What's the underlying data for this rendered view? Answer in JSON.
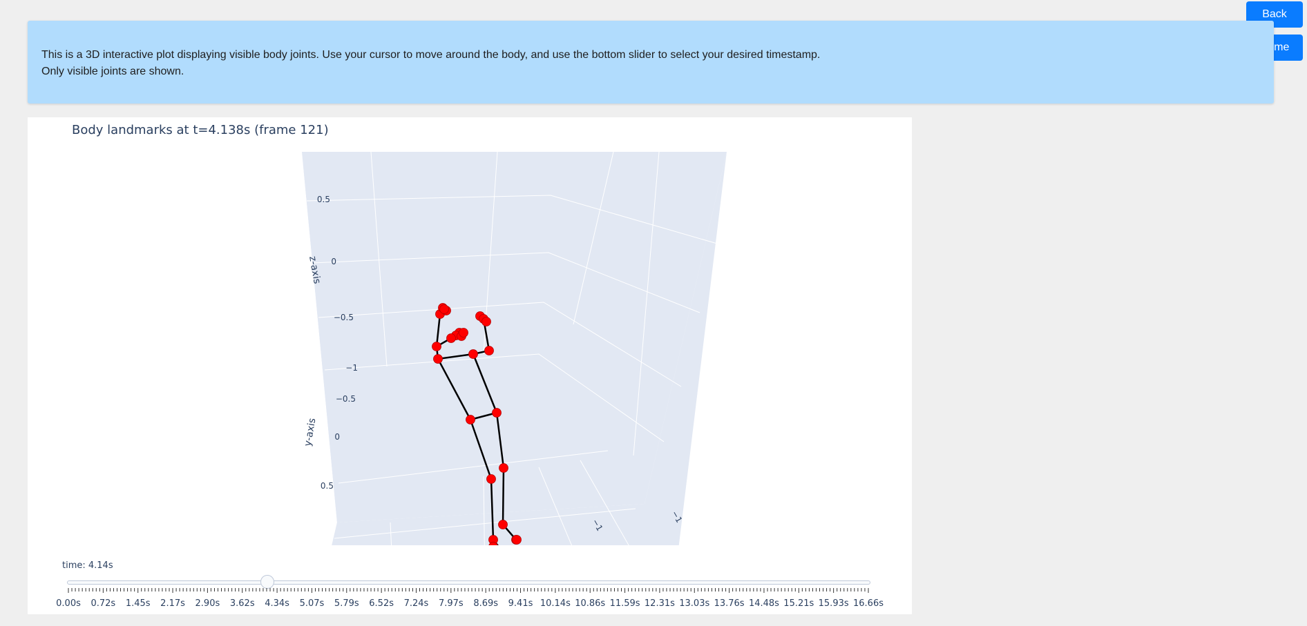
{
  "nav": {
    "back_label": "Back",
    "home_label": "Home"
  },
  "info": {
    "line1": "This is a 3D interactive plot displaying visible body joints. Use your cursor to move around the body, and use the bottom slider to select your desired timestamp.",
    "line2": "Only visible joints are shown."
  },
  "chart_data": {
    "type": "scatter3d",
    "title": "Body landmarks at t=4.138s (frame 121)",
    "axes": {
      "z": {
        "label": "z-axis",
        "ticks": [
          "0.5",
          "0",
          "−0.5",
          "−1"
        ]
      },
      "y": {
        "label": "y-axis",
        "ticks": [
          "−0.5",
          "0",
          "0.5"
        ]
      },
      "x": {
        "ticks": [
          "−1",
          "−1"
        ]
      }
    },
    "marker_color": "#ff0000",
    "bone_color": "#000000",
    "joint_count": 33
  },
  "slider": {
    "label": "time: 4.14s",
    "value_fraction": 0.2484,
    "ticks": [
      "0.00s",
      "0.72s",
      "1.45s",
      "2.17s",
      "2.90s",
      "3.62s",
      "4.34s",
      "5.07s",
      "5.79s",
      "6.52s",
      "7.24s",
      "7.97s",
      "8.69s",
      "9.41s",
      "10.14s",
      "10.86s",
      "11.59s",
      "12.31s",
      "13.03s",
      "13.76s",
      "14.48s",
      "15.21s",
      "15.93s",
      "16.66s"
    ]
  }
}
